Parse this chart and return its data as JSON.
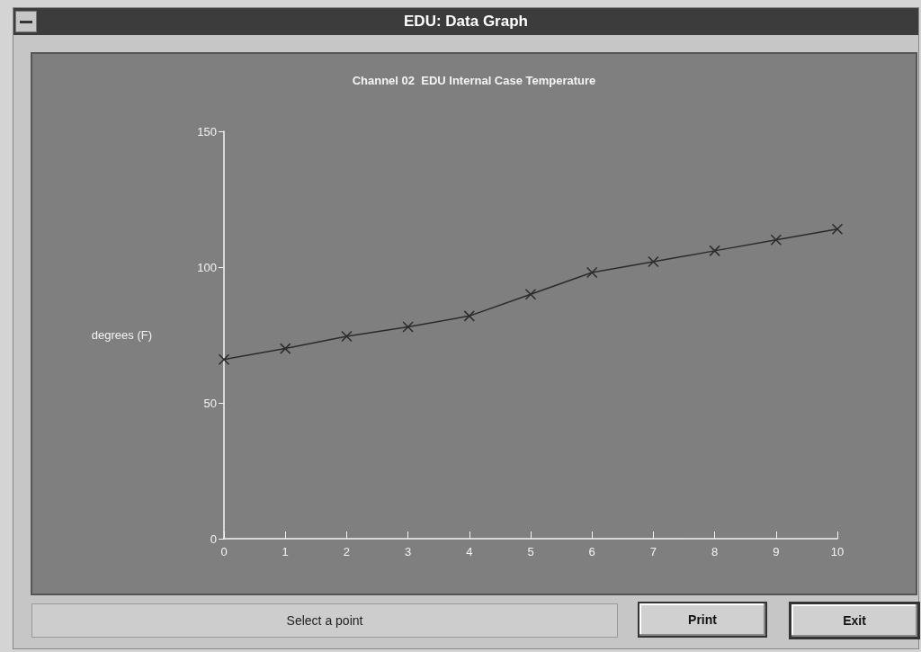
{
  "chart_data": {
    "type": "line",
    "title": "Channel 02  EDU Internal Case Temperature",
    "ylabel": "degrees (F)",
    "x": [
      0,
      1,
      2,
      3,
      4,
      5,
      6,
      7,
      8,
      9,
      10
    ],
    "series": [
      {
        "color": "#2b2b2b",
        "values": [
          66,
          70,
          74.5,
          78,
          82,
          90,
          98,
          102,
          106,
          110,
          114
        ]
      }
    ],
    "xlim": [
      0,
      10
    ],
    "xticks": [
      0,
      1,
      2,
      3,
      4,
      5,
      6,
      7,
      8,
      9,
      10
    ],
    "ylim": [
      0,
      150
    ],
    "yticks": [
      0,
      50,
      100,
      150
    ],
    "grid": false,
    "marker": "cross",
    "line_style": "solid",
    "annotations": [
      "EDU: Data Graph",
      "Select a point",
      "Print",
      "Exit"
    ]
  }
}
